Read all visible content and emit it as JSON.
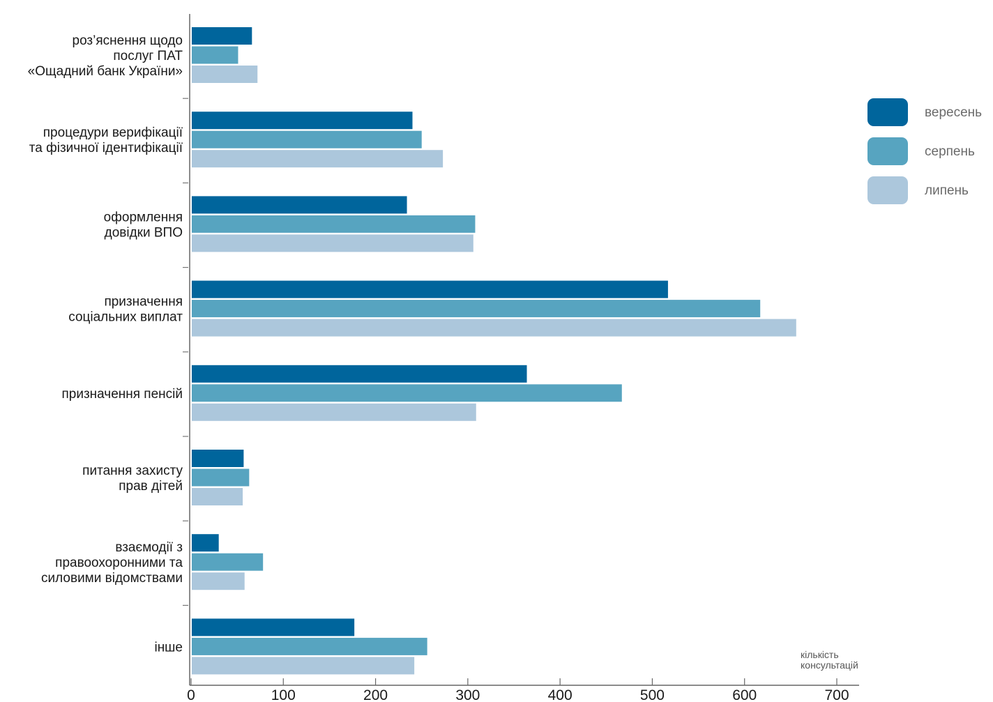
{
  "chart_data": {
    "type": "bar",
    "orientation": "horizontal",
    "categories": [
      [
        "роз’яснення щодо",
        "послуг ПАТ",
        "«Ощадний банк України»"
      ],
      [
        "процедури верифікації",
        "та фізичної ідентифікації"
      ],
      [
        "оформлення",
        "довідки ВПО"
      ],
      [
        "призначення",
        "соціальних виплат"
      ],
      [
        "призначення пенсій"
      ],
      [
        "питання захисту",
        "прав дітей"
      ],
      [
        "взаємодії з",
        "правоохоронними та",
        "силовими відомствами"
      ],
      [
        "інше"
      ]
    ],
    "series": [
      {
        "name": "вересень",
        "color": "#00659c",
        "values": [
          66,
          240,
          234,
          517,
          364,
          57,
          30,
          177
        ]
      },
      {
        "name": "серпень",
        "color": "#57a4c0",
        "values": [
          51,
          250,
          308,
          617,
          467,
          63,
          78,
          256
        ]
      },
      {
        "name": "липень",
        "color": "#acc7dc",
        "values": [
          72,
          273,
          306,
          656,
          309,
          56,
          58,
          242
        ]
      }
    ],
    "xlim": [
      0,
      700
    ],
    "xticks": [
      "0",
      "100",
      "200",
      "300",
      "400",
      "500",
      "600",
      "700"
    ],
    "xlabel": [
      "кількість",
      "консультацій"
    ],
    "ylabel": "",
    "title": "",
    "legend_position": "right",
    "grid": false
  }
}
